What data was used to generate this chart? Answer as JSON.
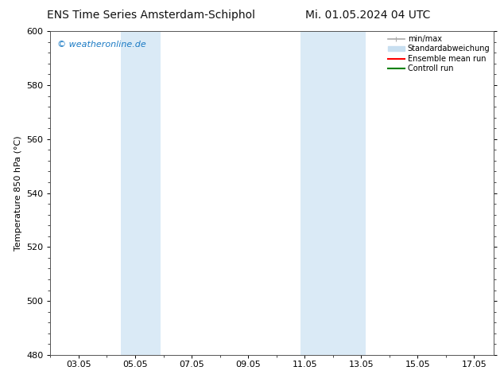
{
  "title_left": "ENS Time Series Amsterdam-Schiphol",
  "title_right": "Mi. 01.05.2024 04 UTC",
  "ylabel": "Temperature 850 hPa (°C)",
  "watermark": "© weatheronline.de",
  "watermark_color": "#1a7ac4",
  "ylim": [
    480,
    600
  ],
  "yticks": [
    480,
    500,
    520,
    540,
    560,
    580,
    600
  ],
  "xlim": [
    2.0,
    17.7
  ],
  "xtick_labels": [
    "03.05",
    "05.05",
    "07.05",
    "09.05",
    "11.05",
    "13.05",
    "15.05",
    "17.05"
  ],
  "xtick_positions_days": [
    3,
    5,
    7,
    9,
    11,
    13,
    15,
    17
  ],
  "shaded_regions": [
    {
      "x_start_day": 4.48,
      "x_end_day": 5.9,
      "color": "#daeaf6"
    },
    {
      "x_start_day": 10.85,
      "x_end_day": 13.15,
      "color": "#daeaf6"
    }
  ],
  "legend_items": [
    {
      "label": "min/max",
      "color": "#aaaaaa",
      "lw": 1.2
    },
    {
      "label": "Standardabweichung",
      "color": "#c8dff0",
      "lw": 8
    },
    {
      "label": "Ensemble mean run",
      "color": "#ff0000",
      "lw": 1.5
    },
    {
      "label": "Controll run",
      "color": "#008000",
      "lw": 1.5
    }
  ],
  "bg_color": "#ffffff",
  "plot_bg_color": "#ffffff",
  "spine_color": "#555555",
  "title_fontsize": 10,
  "label_fontsize": 8,
  "tick_fontsize": 8,
  "watermark_fontsize": 8,
  "legend_fontsize": 7
}
